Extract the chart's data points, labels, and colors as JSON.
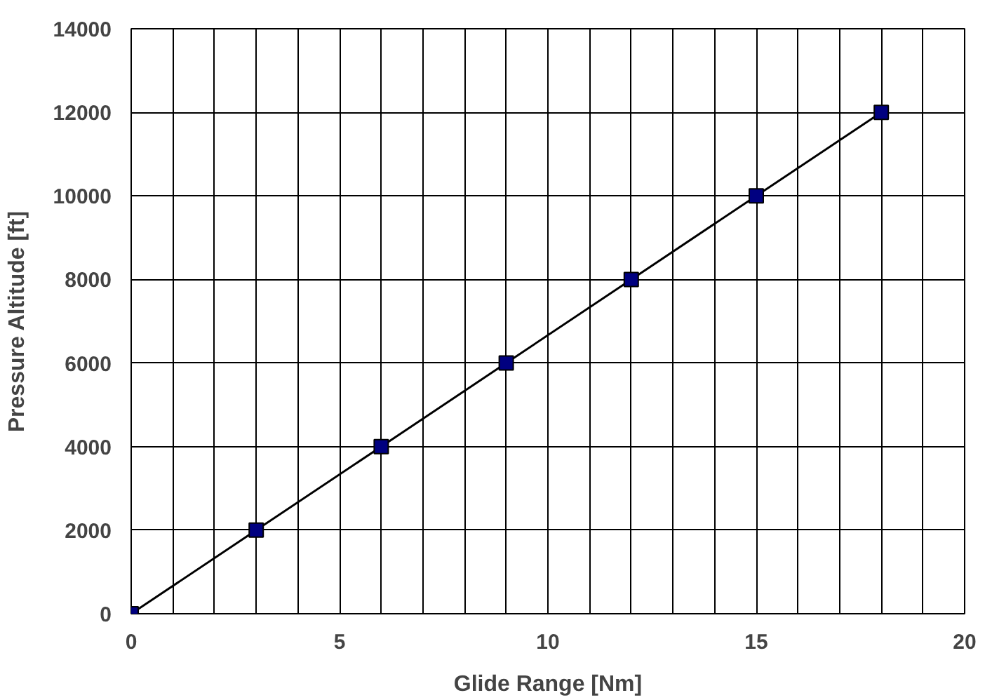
{
  "chart_data": {
    "type": "line",
    "xlabel": "Glide Range [Nm]",
    "ylabel": "Pressure Altitude [ft]",
    "x": [
      0,
      3,
      6,
      9,
      12,
      15,
      18
    ],
    "series": [
      {
        "color": "#000080",
        "values": [
          0,
          2000,
          4000,
          6000,
          8000,
          10000,
          12000
        ]
      }
    ],
    "xlim": [
      0,
      20
    ],
    "xticks": [
      0,
      {
        "value": 1,
        "label": null
      },
      {
        "value": 2,
        "label": null
      },
      {
        "value": 3,
        "label": null
      },
      {
        "value": 4,
        "label": null
      },
      5,
      {
        "value": 6,
        "label": null
      },
      {
        "value": 7,
        "label": null
      },
      {
        "value": 8,
        "label": null
      },
      {
        "value": 9,
        "label": null
      },
      10,
      {
        "value": 11,
        "label": null
      },
      {
        "value": 12,
        "label": null
      },
      {
        "value": 13,
        "label": null
      },
      {
        "value": 14,
        "label": null
      },
      15,
      {
        "value": 16,
        "label": null
      },
      {
        "value": 17,
        "label": null
      },
      {
        "value": 18,
        "label": null
      },
      {
        "value": 19,
        "label": null
      },
      20
    ],
    "ylim": [
      0,
      14000
    ],
    "yticks": [
      0,
      2000,
      4000,
      6000,
      8000,
      10000,
      12000,
      14000
    ],
    "grid": true,
    "marker": "square",
    "line_style": "solid"
  }
}
